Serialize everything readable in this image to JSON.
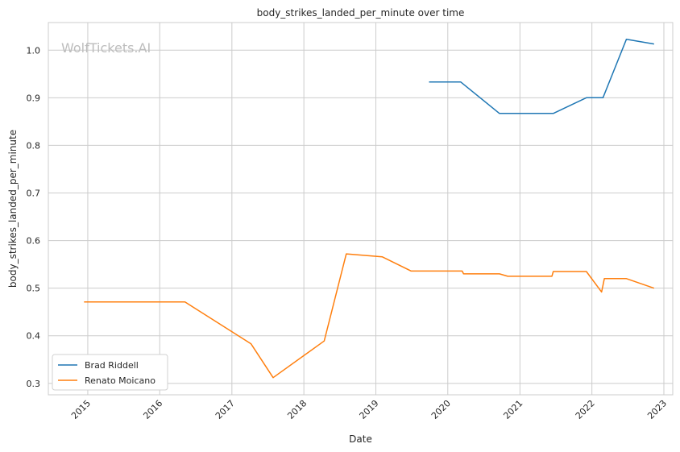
{
  "chart_data": {
    "type": "line",
    "title": "body_strikes_landed_per_minute over time",
    "xlabel": "Date",
    "ylabel": "body_strikes_landed_per_minute",
    "watermark": "WolfTickets.AI",
    "x_type": "date",
    "xlim": [
      "2014-06-15",
      "2023-02-15"
    ],
    "ylim": [
      0.276,
      1.058
    ],
    "x_ticks": [
      "2015-01-01",
      "2016-01-01",
      "2017-01-01",
      "2018-01-01",
      "2019-01-01",
      "2020-01-01",
      "2021-01-01",
      "2022-01-01",
      "2023-01-01"
    ],
    "x_tick_labels": [
      "2015",
      "2016",
      "2017",
      "2018",
      "2019",
      "2020",
      "2021",
      "2022",
      "2023"
    ],
    "y_ticks": [
      0.3,
      0.4,
      0.5,
      0.6,
      0.7,
      0.8,
      0.9,
      1.0
    ],
    "y_tick_labels": [
      "0.3",
      "0.4",
      "0.5",
      "0.6",
      "0.7",
      "0.8",
      "0.9",
      "1.0"
    ],
    "grid": true,
    "legend_position": "lower-left",
    "series": [
      {
        "name": "Brad Riddell",
        "color": "#1f77b4",
        "x": [
          "2019-09-28",
          "2020-03-07",
          "2020-09-19",
          "2021-06-19",
          "2021-12-04",
          "2022-02-26",
          "2022-06-25",
          "2022-11-12"
        ],
        "y": [
          0.933,
          0.933,
          0.867,
          0.867,
          0.9,
          0.9,
          1.023,
          1.013
        ]
      },
      {
        "name": "Renato Moicano",
        "color": "#ff7f0e",
        "x": [
          "2014-12-13",
          "2016-05-08",
          "2017-04-08",
          "2017-07-29",
          "2018-04-14",
          "2018-08-04",
          "2019-02-02",
          "2019-06-29",
          "2020-03-14",
          "2020-03-21",
          "2020-09-19",
          "2020-10-31",
          "2021-06-12",
          "2021-06-19",
          "2021-12-04",
          "2022-02-19",
          "2022-03-05",
          "2022-06-25",
          "2022-11-12"
        ],
        "y": [
          0.471,
          0.471,
          0.383,
          0.312,
          0.389,
          0.572,
          0.566,
          0.536,
          0.536,
          0.53,
          0.53,
          0.525,
          0.525,
          0.535,
          0.535,
          0.492,
          0.52,
          0.52,
          0.5
        ]
      }
    ]
  }
}
